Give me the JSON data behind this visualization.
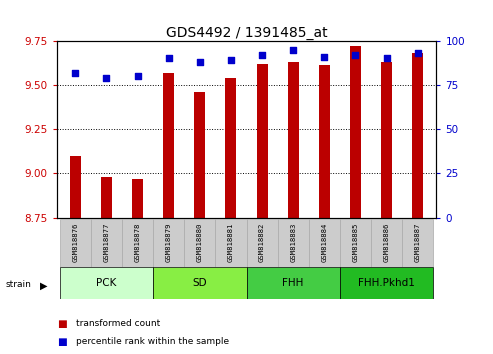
{
  "title": "GDS4492 / 1391485_at",
  "samples": [
    "GSM818876",
    "GSM818877",
    "GSM818878",
    "GSM818879",
    "GSM818880",
    "GSM818881",
    "GSM818882",
    "GSM818883",
    "GSM818884",
    "GSM818885",
    "GSM818886",
    "GSM818887"
  ],
  "red_values": [
    9.1,
    8.98,
    8.97,
    9.57,
    9.46,
    9.54,
    9.62,
    9.63,
    9.61,
    9.72,
    9.63,
    9.68
  ],
  "blue_values": [
    82,
    79,
    80,
    90,
    88,
    89,
    92,
    95,
    91,
    92,
    90,
    93
  ],
  "ylim_left": [
    8.75,
    9.75
  ],
  "ylim_right": [
    0,
    100
  ],
  "yticks_left": [
    8.75,
    9.0,
    9.25,
    9.5,
    9.75
  ],
  "yticks_right": [
    0,
    25,
    50,
    75,
    100
  ],
  "group_labels": [
    "PCK",
    "SD",
    "FHH",
    "FHH.Pkhd1"
  ],
  "group_starts": [
    0,
    3,
    6,
    9
  ],
  "group_ends": [
    3,
    6,
    9,
    12
  ],
  "group_colors": [
    "#ccffcc",
    "#88ee44",
    "#44cc44",
    "#22bb22"
  ],
  "bar_color": "#bb0000",
  "dot_color": "#0000cc",
  "background_color": "#ffffff",
  "tick_color_left": "#cc0000",
  "tick_color_right": "#0000cc",
  "bar_width": 0.35,
  "grid_lines": [
    9.0,
    9.25,
    9.5
  ],
  "legend_items": [
    "transformed count",
    "percentile rank within the sample"
  ],
  "sample_box_color": "#cccccc",
  "sample_box_edge": "#aaaaaa"
}
